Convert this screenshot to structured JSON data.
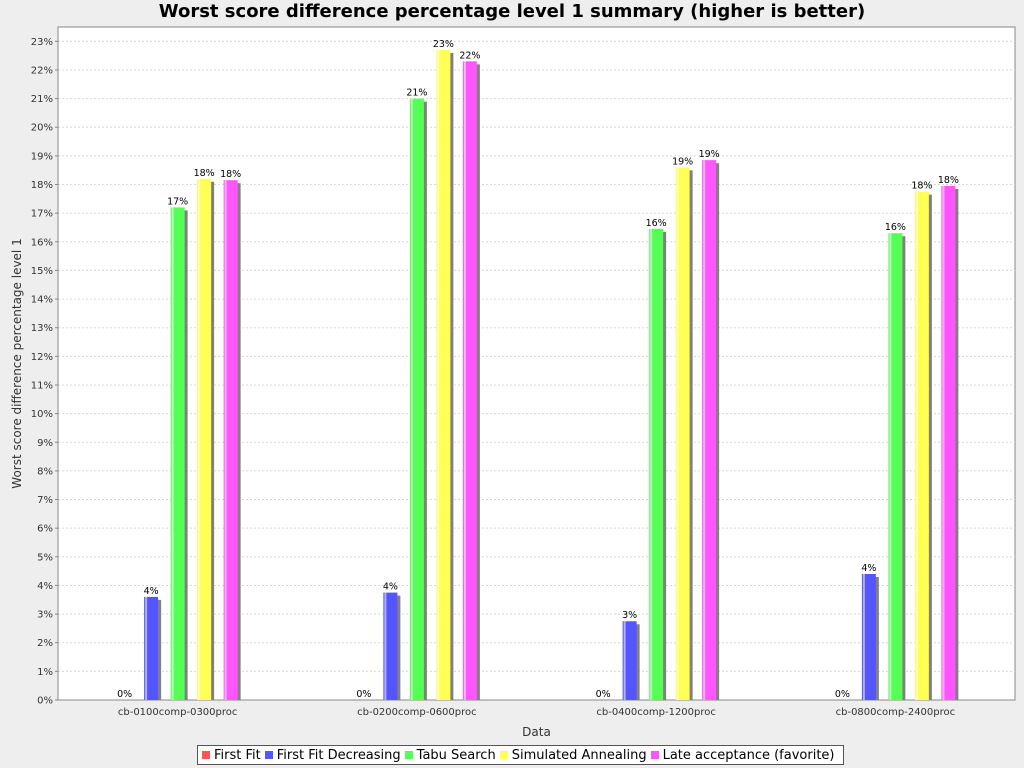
{
  "chart_data": {
    "type": "bar",
    "title": "Worst score difference percentage level 1 summary (higher is better)",
    "xlabel": "Data",
    "ylabel": "Worst score difference percentage level 1",
    "ylim": [
      0,
      23.5
    ],
    "yticks": [
      "0%",
      "1%",
      "2%",
      "3%",
      "4%",
      "5%",
      "6%",
      "7%",
      "8%",
      "9%",
      "10%",
      "11%",
      "12%",
      "13%",
      "14%",
      "15%",
      "16%",
      "17%",
      "18%",
      "19%",
      "20%",
      "21%",
      "22%",
      "23%"
    ],
    "grid": true,
    "legend_position": "bottom",
    "categories": [
      "cb-0100comp-0300proc",
      "cb-0200comp-0600proc",
      "cb-0400comp-1200proc",
      "cb-0800comp-2400proc"
    ],
    "series": [
      {
        "name": "First Fit",
        "color": "#ff5555",
        "values": [
          0,
          0,
          0,
          0
        ],
        "labels": [
          "0%",
          "0%",
          "0%",
          "0%"
        ]
      },
      {
        "name": "First Fit Decreasing",
        "color": "#5555ff",
        "values": [
          3.6,
          3.75,
          2.75,
          4.4
        ],
        "labels": [
          "4%",
          "4%",
          "3%",
          "4%"
        ]
      },
      {
        "name": "Tabu Search",
        "color": "#55ff55",
        "values": [
          17.2,
          21.0,
          16.45,
          16.3
        ],
        "labels": [
          "17%",
          "21%",
          "16%",
          "16%"
        ]
      },
      {
        "name": "Simulated Annealing",
        "color": "#ffff55",
        "values": [
          18.2,
          22.7,
          18.6,
          17.75
        ],
        "labels": [
          "18%",
          "23%",
          "19%",
          "18%"
        ]
      },
      {
        "name": "Late acceptance (favorite)",
        "color": "#ff55ff",
        "values": [
          18.15,
          22.3,
          18.85,
          17.95
        ],
        "labels": [
          "18%",
          "22%",
          "19%",
          "18%"
        ]
      }
    ]
  }
}
